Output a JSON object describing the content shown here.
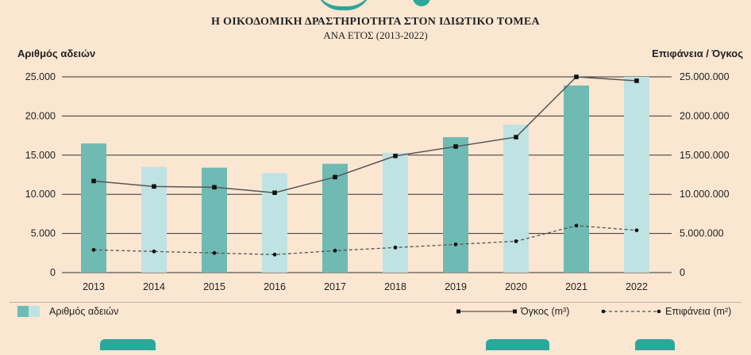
{
  "chart_data": {
    "type": "bar",
    "title": "Η ΟΙΚΟΔΟΜΙΚΗ ΔΡΑΣΤΗΡΙΟΤΗΤΑ ΣΤΟΝ ΙΔΙΩΤΙΚΟ ΤΟΜΕΑ",
    "subtitle": "ΑΝΑ ΕΤΟΣ (2013-2022)",
    "ylabel_left": "Αριθμός αδειών",
    "ylabel_right": "Επιφάνεια / Όγκος",
    "categories": [
      "2013",
      "2014",
      "2015",
      "2016",
      "2017",
      "2018",
      "2019",
      "2020",
      "2021",
      "2022"
    ],
    "ylim_left": [
      0,
      25000
    ],
    "ylim_right": [
      0,
      25000000
    ],
    "yticks_left": [
      "0",
      "5.000",
      "10.000",
      "15.000",
      "20.000",
      "25.000"
    ],
    "yticks_right": [
      "0",
      "5.000.000",
      "10.000.000",
      "15.000.000",
      "20.000.000",
      "25.000.000"
    ],
    "grid": true,
    "legend_position": "bottom",
    "series": [
      {
        "name": "Αριθμός αδειών",
        "type": "bar",
        "axis": "left",
        "values": [
          16500,
          13500,
          13400,
          12700,
          13900,
          15300,
          17300,
          18900,
          23900,
          25000
        ]
      },
      {
        "name": "Όγκος (m³)",
        "type": "line",
        "axis": "right",
        "style": "solid-square",
        "values": [
          11700000,
          11000000,
          10900000,
          10200000,
          12200000,
          14900000,
          16100000,
          17300000,
          25000000,
          24500000
        ]
      },
      {
        "name": "Επιφάνεια (m²)",
        "type": "line",
        "axis": "right",
        "style": "dashed-dot",
        "values": [
          2900000,
          2700000,
          2500000,
          2300000,
          2800000,
          3200000,
          3600000,
          4000000,
          6000000,
          5400000
        ]
      }
    ],
    "colors": {
      "bar_dark": "#6fbbb3",
      "bar_light": "#bfe2e2",
      "line": "#555555",
      "marker": "#111111",
      "grid": "#333333"
    }
  },
  "legend": {
    "bars_label": "Αριθμός αδειών",
    "volume_label": "Όγκος (m³)",
    "area_label": "Επιφάνεια (m²)"
  }
}
